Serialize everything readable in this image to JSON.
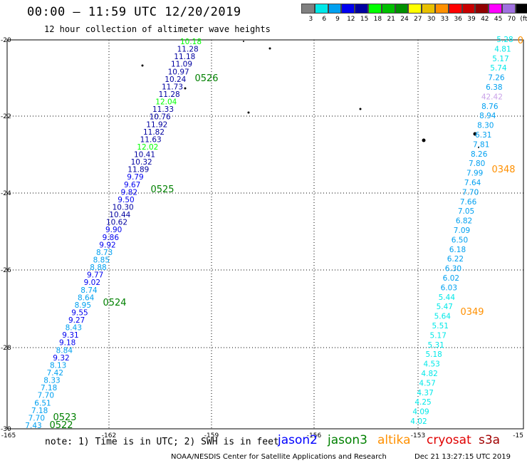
{
  "header": {
    "title": "00:00 – 11:59 UTC 12/20/2019",
    "subtitle": "12 hour collection of altimeter wave heights"
  },
  "colorbar": {
    "colors": [
      "#808080",
      "#00e8e8",
      "#00a0f0",
      "#0000f0",
      "#0000a0",
      "#00ff00",
      "#00c000",
      "#009000",
      "#ffff00",
      "#e8c000",
      "#ff9000",
      "#ff0000",
      "#c80000",
      "#900000",
      "#ff00ff",
      "#a070e0",
      "#000000"
    ],
    "labels": [
      "3",
      "6",
      "9",
      "12",
      "15",
      "18",
      "21",
      "24",
      "27",
      "30",
      "33",
      "36",
      "39",
      "42",
      "45",
      "70",
      "(ft)"
    ]
  },
  "axes": {
    "lon_ticks": [
      "-165",
      "-162",
      "-159",
      "-156",
      "-153",
      "-15"
    ],
    "lat_ticks": [
      "-20",
      "-22",
      "-24",
      "-26",
      "-28",
      "-30"
    ]
  },
  "tracks": {
    "west": [
      {
        "v": "10.18",
        "c": "#00ff00"
      },
      {
        "v": "11.28",
        "c": "#0000a0"
      },
      {
        "v": "11.18",
        "c": "#0000a0"
      },
      {
        "v": "11.09",
        "c": "#0000a0"
      },
      {
        "v": "10.97",
        "c": "#0000a0"
      },
      {
        "v": "10.24",
        "c": "#0000a0"
      },
      {
        "v": "11.73",
        "c": "#0000a0"
      },
      {
        "v": "11.28",
        "c": "#0000a0"
      },
      {
        "v": "12.04",
        "c": "#00ff00"
      },
      {
        "v": "11.33",
        "c": "#0000a0"
      },
      {
        "v": "10.76",
        "c": "#0000a0"
      },
      {
        "v": "11.92",
        "c": "#0000a0"
      },
      {
        "v": "11.82",
        "c": "#0000a0"
      },
      {
        "v": "11.63",
        "c": "#0000a0"
      },
      {
        "v": "12.02",
        "c": "#00ff00"
      },
      {
        "v": "10.41",
        "c": "#0000a0"
      },
      {
        "v": "10.32",
        "c": "#0000a0"
      },
      {
        "v": "11.89",
        "c": "#0000a0"
      },
      {
        "v": "9.79",
        "c": "#0000f0"
      },
      {
        "v": "9.67",
        "c": "#0000f0"
      },
      {
        "v": "9.82",
        "c": "#0000f0"
      },
      {
        "v": "9.50",
        "c": "#0000f0"
      },
      {
        "v": "10.30",
        "c": "#0000a0"
      },
      {
        "v": "10.44",
        "c": "#0000a0"
      },
      {
        "v": "10.62",
        "c": "#0000a0"
      },
      {
        "v": "9.90",
        "c": "#0000f0"
      },
      {
        "v": "9.86",
        "c": "#0000f0"
      },
      {
        "v": "9.92",
        "c": "#0000f0"
      },
      {
        "v": "8.73",
        "c": "#00a0f0"
      },
      {
        "v": "8.85",
        "c": "#00a0f0"
      },
      {
        "v": "8.88",
        "c": "#00a0f0"
      },
      {
        "v": "9.77",
        "c": "#0000f0"
      },
      {
        "v": "9.02",
        "c": "#0000f0"
      },
      {
        "v": "8.74",
        "c": "#00a0f0"
      },
      {
        "v": "8.64",
        "c": "#00a0f0"
      },
      {
        "v": "8.95",
        "c": "#00a0f0"
      },
      {
        "v": "9.55",
        "c": "#0000f0"
      },
      {
        "v": "9.27",
        "c": "#0000f0"
      },
      {
        "v": "8.43",
        "c": "#00a0f0"
      },
      {
        "v": "9.31",
        "c": "#0000f0"
      },
      {
        "v": "9.18",
        "c": "#0000f0"
      },
      {
        "v": "8.84",
        "c": "#00a0f0"
      },
      {
        "v": "9.32",
        "c": "#0000f0"
      },
      {
        "v": "8.13",
        "c": "#00a0f0"
      },
      {
        "v": "7.42",
        "c": "#00a0f0"
      },
      {
        "v": "8.33",
        "c": "#00a0f0"
      },
      {
        "v": "7.18",
        "c": "#00a0f0"
      },
      {
        "v": "7.70",
        "c": "#00a0f0"
      },
      {
        "v": "6.51",
        "c": "#00a0f0"
      },
      {
        "v": "7.18",
        "c": "#00a0f0"
      },
      {
        "v": "7.70",
        "c": "#00a0f0"
      },
      {
        "v": "7.43",
        "c": "#00a0f0"
      }
    ],
    "east": [
      {
        "v": "5.28",
        "c": "#00e8e8"
      },
      {
        "v": "4.81",
        "c": "#00e8e8"
      },
      {
        "v": "5.17",
        "c": "#00e8e8"
      },
      {
        "v": "5.74",
        "c": "#00e8e8"
      },
      {
        "v": "7.26",
        "c": "#00a0f0"
      },
      {
        "v": "6.38",
        "c": "#00a0f0"
      },
      {
        "v": "42.42",
        "c": "#c8a0e8"
      },
      {
        "v": "8.76",
        "c": "#00a0f0"
      },
      {
        "v": "8.94",
        "c": "#00a0f0"
      },
      {
        "v": "8.30",
        "c": "#00a0f0"
      },
      {
        "v": "6.31",
        "c": "#00a0f0"
      },
      {
        "v": "7.81",
        "c": "#00a0f0"
      },
      {
        "v": "8.26",
        "c": "#00a0f0"
      },
      {
        "v": "7.80",
        "c": "#00a0f0"
      },
      {
        "v": "7.99",
        "c": "#00a0f0"
      },
      {
        "v": "7.64",
        "c": "#00a0f0"
      },
      {
        "v": "7.70",
        "c": "#00a0f0"
      },
      {
        "v": "7.66",
        "c": "#00a0f0"
      },
      {
        "v": "7.05",
        "c": "#00a0f0"
      },
      {
        "v": "6.82",
        "c": "#00a0f0"
      },
      {
        "v": "7.09",
        "c": "#00a0f0"
      },
      {
        "v": "6.50",
        "c": "#00a0f0"
      },
      {
        "v": "6.18",
        "c": "#00a0f0"
      },
      {
        "v": "6.22",
        "c": "#00a0f0"
      },
      {
        "v": "6.30",
        "c": "#00a0f0"
      },
      {
        "v": "6.02",
        "c": "#00a0f0"
      },
      {
        "v": "6.03",
        "c": "#00a0f0"
      },
      {
        "v": "5.44",
        "c": "#00e8e8"
      },
      {
        "v": "5.47",
        "c": "#00e8e8"
      },
      {
        "v": "5.64",
        "c": "#00e8e8"
      },
      {
        "v": "5.51",
        "c": "#00e8e8"
      },
      {
        "v": "5.17",
        "c": "#00e8e8"
      },
      {
        "v": "5.31",
        "c": "#00e8e8"
      },
      {
        "v": "5.18",
        "c": "#00e8e8"
      },
      {
        "v": "4.53",
        "c": "#00e8e8"
      },
      {
        "v": "4.82",
        "c": "#00e8e8"
      },
      {
        "v": "4.57",
        "c": "#00e8e8"
      },
      {
        "v": "4.37",
        "c": "#00e8e8"
      },
      {
        "v": "4.25",
        "c": "#00e8e8"
      },
      {
        "v": "4.09",
        "c": "#00e8e8"
      },
      {
        "v": "4.02",
        "c": "#00e8e8"
      }
    ]
  },
  "pass_labels": [
    {
      "t": "0526",
      "c": "#008000"
    },
    {
      "t": "0525",
      "c": "#008000"
    },
    {
      "t": "0524",
      "c": "#008000"
    },
    {
      "t": "0523",
      "c": "#008000"
    },
    {
      "t": "0522",
      "c": "#008000"
    },
    {
      "t": "0348",
      "c": "#ff9000"
    },
    {
      "t": "0349",
      "c": "#ff9000"
    },
    {
      "t": "0",
      "c": "#ff9000"
    }
  ],
  "footer": {
    "note": "note: 1) Time is in UTC; 2) SWH is in feet",
    "legend": [
      {
        "name": "jason2",
        "color": "#0000ff"
      },
      {
        "name": "jason3",
        "color": "#008000"
      },
      {
        "name": "altika",
        "color": "#ff9000"
      },
      {
        "name": "cryosat",
        "color": "#e00000"
      },
      {
        "name": "s3a",
        "color": "#a00000"
      }
    ],
    "center": "NOAA/NESDIS Center for Satellite Applications and Research",
    "timestamp": "Dec 21 13:27:15 UTC 2019"
  }
}
